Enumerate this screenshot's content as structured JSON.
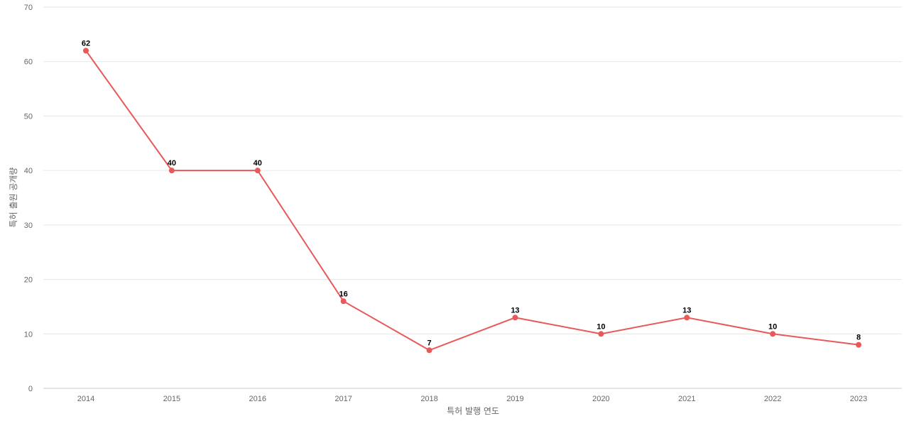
{
  "chart_data": {
    "type": "line",
    "categories": [
      "2014",
      "2015",
      "2016",
      "2017",
      "2018",
      "2019",
      "2020",
      "2021",
      "2022",
      "2023"
    ],
    "series": [
      {
        "values": [
          62,
          40,
          40,
          16,
          7,
          13,
          10,
          13,
          10,
          8
        ],
        "color": "#e8595a"
      }
    ],
    "xlabel": "특허 발행 연도",
    "ylabel": "특허 출원 공개량",
    "ylim": [
      0,
      70
    ],
    "yticks": [
      0,
      10,
      20,
      30,
      40,
      50,
      60,
      70
    ],
    "grid": true,
    "data_labels": true
  }
}
